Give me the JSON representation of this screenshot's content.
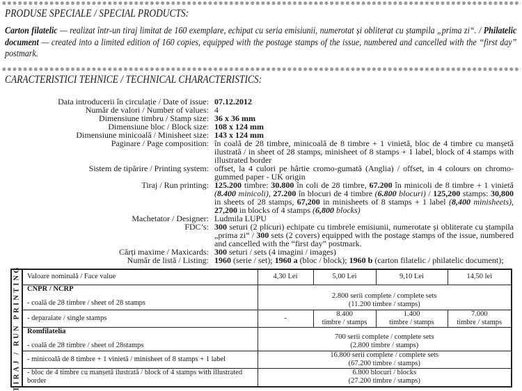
{
  "special_products": {
    "heading": "PRODUSE SPECIALE / SPECIAL PRODUCTS:",
    "ro_bold": "Carton filatelic",
    "ro_text": " — realizat într-un tiraj limitat de 160 exemplare, echipat cu seria emisiunii, numerotat și obliterat cu ștampila „prima zi“. / ",
    "en_bold": "Philatelic document",
    "en_text": " — created into a limited edition of 160 copies, equipped with the postage stamps of the issue, numbered and cancelled with the “first day” postmark."
  },
  "technical": {
    "heading": "CARACTERISTICI TEHNICE / TECHNICAL CHARACTERISTICS:",
    "rows": [
      {
        "label": "Data introducerii în circulație / Date of issue:",
        "value": "07.12.2012"
      },
      {
        "label": "Număr de valori / Number of values:",
        "value": "4"
      },
      {
        "label": "Dimensiune timbru / Stamp size:",
        "value": "36 x 36 mm"
      },
      {
        "label": "Dimensiune bloc / Block size:",
        "value": "108 x 124 mm"
      },
      {
        "label": "Dimensiune minicoală / Minisheet size:",
        "value": "143 x 124 mm"
      },
      {
        "label": "Paginare / Page composition:",
        "value": "în coală de 28 timbre, minicoală de 8 timbre + 1 vinietă, bloc de 4 timbre cu manșetă ilustrată / in sheet of 28 stamps, minisheet of 8 stamps + 1 label, block of 4 stamps with illustrated border"
      },
      {
        "label": "Sistem de tipărire / Printing system:",
        "value": "offset, la 4 culori pe hârtie cromo-gumată (Anglia) / offset, in 4 colours on chromo-gummed paper - UK origin"
      },
      {
        "label": "Tiraj / Run printing:",
        "value": "125.200 timbre: 30.800 în coli de 28 timbre, 67.200 în minicoli de 8 timbre + 1 vinietă (8.400 minicoli), 27.200 în blocuri de 4 timbre (6.800 blocuri) / 125,200 stamps: 30,800 in sheets of 28 stamps, 67,200 in minisheets of 8 stamps + 1 label (8,400 minisheets), 27,200 in blocks of 4 stamps (6,800 blocks)"
      },
      {
        "label": "Machetator / Designer:",
        "value": "Ludmila LUPU"
      },
      {
        "label": "FDC’s:",
        "value": "300 seturi (2 plicuri) echipate cu timbrele emisiunii, numerotate și obliterate cu ștampila „prima zi“ / 300 sets (2 covers) equipped with the postage stamps of the issue, numbered and cancelled with the “first day” postmark."
      },
      {
        "label": "Cărți maxime / Maxicards:",
        "value": "300 seturi / sets (4 imagini / images)"
      },
      {
        "label": "Număr de listă / Listing:",
        "value": "1960 (serie / set); 1960 a (bloc / block); 1960 b (carton filatelic / philatelic document);"
      }
    ]
  },
  "run_table": {
    "side_label": "TIRAJ / RUN PRINTING",
    "header": {
      "label": "Valoare nominală / Face value",
      "values": [
        "4,30 Lei",
        "5,00 Lei",
        "9,10 Lei",
        "14,50 lei"
      ]
    },
    "cnpr": {
      "title": "CNPR / NCRP",
      "sheet_label": "- coală de 28 timbre / sheet of 28 stamps",
      "sheet_value_1": "2.800 serii complete / complete sets",
      "sheet_value_2": "(11.200 timbre / stamps)",
      "single_label": "- deparaiate / single stamps",
      "single_values": [
        "-",
        "8.400",
        "1.400",
        "7.000"
      ],
      "single_unit": "timbre / stamps"
    },
    "romfilatelia": {
      "title": "Romfilatelia",
      "sheet_label": "- coală de 28 timbre / sheet of 28stamps",
      "sheet_value_1": "700 serii complete / complete sets",
      "sheet_value_2": "(2.800 timbre / stamps)",
      "minisheet_label": "- minicoală de 8 timbre + 1 vinietă / minisheet of 8 stamps + 1 label",
      "minisheet_value_1": "16.800 serii complete / complete sets",
      "minisheet_value_2": "(67.200 timbre / stamps)",
      "block_label": "- bloc de 4 timbre cu manșetă ilustrată / block of 4 stamps with illustrated border",
      "block_value_1": "6.800 blocuri / blocks",
      "block_value_2": "(27.200 timbre / stamps)"
    }
  }
}
